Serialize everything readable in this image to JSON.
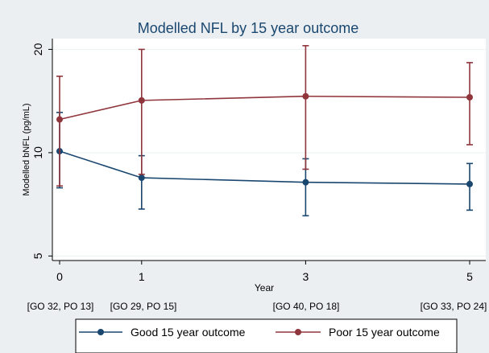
{
  "chart_data": {
    "type": "line",
    "title": "Modelled NFL by 15 year outcome",
    "xlabel": "Year",
    "ylabel": "Modelled bNFL (pg/mL)",
    "y_scale": "log",
    "xlim": [
      0,
      5
    ],
    "ylim": [
      4.85,
      21.5
    ],
    "x_ticks": [
      0,
      1,
      3,
      5
    ],
    "y_ticks": [
      5,
      10,
      20
    ],
    "group_counts": [
      "[GO 32, PO 13]",
      "[GO 29, PO 15]",
      "[GO 40, PO 18]",
      "[GO 33, PO 24]"
    ],
    "background": "#ebeff2",
    "plot_background": "#ffffff",
    "grid": true,
    "legend_position": "bottom",
    "series": [
      {
        "name": "Good 15 year outcome",
        "color": "#1a476f",
        "x": [
          0,
          1,
          3,
          5
        ],
        "y": [
          10.1,
          8.45,
          8.2,
          8.1
        ],
        "ci_low": [
          7.9,
          6.85,
          6.55,
          6.8
        ],
        "ci_high": [
          13.1,
          9.8,
          9.6,
          9.3
        ]
      },
      {
        "name": "Poor 15 year outcome",
        "color": "#90353b",
        "x": [
          0,
          1,
          3,
          5
        ],
        "y": [
          12.5,
          14.2,
          14.6,
          14.5
        ],
        "ci_low": [
          8.0,
          8.65,
          8.95,
          10.55
        ],
        "ci_high": [
          16.7,
          20.0,
          20.5,
          18.3
        ]
      }
    ]
  }
}
